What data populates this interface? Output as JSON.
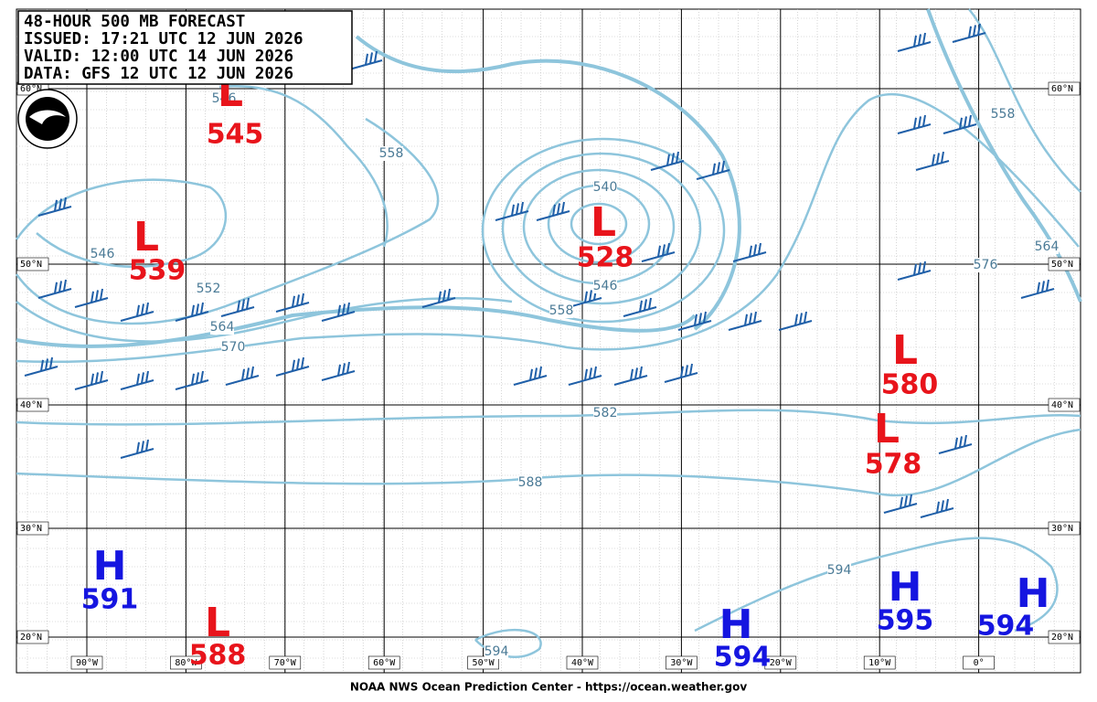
{
  "header": {
    "lines": [
      "48-HOUR 500 MB FORECAST",
      "ISSUED: 17:21 UTC 12 JUN 2026",
      "VALID:  12:00 UTC 14 JUN 2026",
      "DATA:  GFS 12 UTC 12 JUN 2026"
    ]
  },
  "latitudes": [
    "60°N",
    "50°N",
    "40°N",
    "30°N",
    "20°N"
  ],
  "longitudes": [
    "90°W",
    "80°W",
    "70°W",
    "60°W",
    "50°W",
    "40°W",
    "30°W",
    "20°W",
    "10°W",
    "0°"
  ],
  "centers": [
    {
      "symbol": "L",
      "value": 545
    },
    {
      "symbol": "L",
      "value": 539
    },
    {
      "symbol": "L",
      "value": 528
    },
    {
      "symbol": "L",
      "value": 580
    },
    {
      "symbol": "L",
      "value": 578
    },
    {
      "symbol": "L",
      "value": 588
    },
    {
      "symbol": "H",
      "value": 591
    },
    {
      "symbol": "H",
      "value": 594
    },
    {
      "symbol": "H",
      "value": 595
    },
    {
      "symbol": "H",
      "value": 594
    }
  ],
  "contour_labels": [
    546,
    558,
    546,
    552,
    564,
    570,
    540,
    546,
    558,
    582,
    588,
    594,
    594,
    558,
    564,
    576
  ],
  "footer": "NOAA NWS Ocean Prediction Center - https://ocean.weather.gov"
}
